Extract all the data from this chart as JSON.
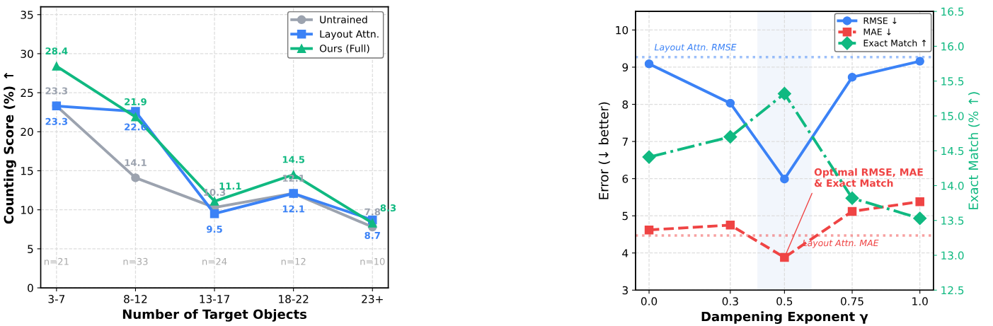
{
  "chart_data": [
    {
      "type": "line",
      "xlabel": "Number of Target Objects",
      "ylabel": "Counting Score (%) ↑",
      "categories": [
        "3-7",
        "8-12",
        "13-17",
        "18-22",
        "23+"
      ],
      "series": [
        {
          "name": "Untrained",
          "color": "#9ca3af",
          "values": [
            23.3,
            14.1,
            10.3,
            12.1,
            7.8
          ],
          "marker": "circle"
        },
        {
          "name": "Layout Attn.",
          "color": "#3b82f6",
          "values": [
            23.3,
            22.6,
            9.5,
            12.1,
            8.7
          ],
          "marker": "square"
        },
        {
          "name": "Ours (Full)",
          "color": "#10b981",
          "values": [
            28.4,
            21.9,
            11.1,
            14.5,
            8.3
          ],
          "marker": "triangle"
        }
      ],
      "data_labels": true,
      "ylim": [
        0,
        36
      ],
      "yticks": [
        0,
        5,
        10,
        15,
        20,
        25,
        30,
        35
      ],
      "grid": true,
      "legend": "top right",
      "line_style": "solid",
      "annotations": [
        "n=21",
        "n=33",
        "n=24",
        "n=12",
        "n=10"
      ]
    },
    {
      "type": "line",
      "xlabel": "Dampening Exponent γ",
      "ylabel": "Error (↓ better)",
      "y2label": "Exact Match (% ↑)",
      "x": [
        0,
        0.3,
        0.5,
        0.75,
        1.0
      ],
      "series": [
        {
          "name": "RMSE ↓",
          "color": "#3b82f6",
          "values": [
            9.09,
            8.03,
            5.99,
            8.73,
            9.16
          ],
          "marker": "circle",
          "line_style": "solid"
        },
        {
          "name": "MAE ↓",
          "color": "#ef4444",
          "values": [
            4.62,
            4.75,
            3.88,
            5.12,
            5.38
          ],
          "marker": "square",
          "line_style": "dashed"
        },
        {
          "name": "Exact Match ↑",
          "color": "#10b981",
          "values": [
            14.41,
            14.7,
            15.32,
            13.82,
            13.53
          ],
          "marker": "diamond",
          "line_style": "dashdot",
          "axis": "y2"
        }
      ],
      "xlim": [
        -0.05,
        1.05
      ],
      "xticks": [
        {
          "value": 0,
          "label": "0.0"
        },
        0.3,
        0.5,
        0.75,
        {
          "value": 1.0,
          "label": "1.0"
        }
      ],
      "ylim": [
        3,
        10.5
      ],
      "yticks": [
        3,
        4,
        5,
        6,
        7,
        8,
        9,
        10
      ],
      "y2lim": [
        12.5,
        16.5
      ],
      "y2ticks": [
        {
          "value": 12.5,
          "label": "12.5"
        },
        {
          "value": 13,
          "label": "13.0"
        },
        {
          "value": 13.5,
          "label": "13.5"
        },
        {
          "value": 14,
          "label": "14.0"
        },
        {
          "value": 14.5,
          "label": "14.5"
        },
        {
          "value": 15,
          "label": "15.0"
        },
        {
          "value": 15.5,
          "label": "15.5"
        },
        {
          "value": 16,
          "label": "16.0"
        },
        {
          "value": 16.5,
          "label": "16.5"
        }
      ],
      "grid": true,
      "legend": "top right",
      "ref_lines": [
        {
          "axis": "y",
          "value": 9.27,
          "label": "Layout Attn. RMSE",
          "color": "#3b82f6",
          "line_style": "dotted"
        },
        {
          "axis": "y",
          "value": 4.47,
          "label": "Layout Attn. MAE",
          "color": "#ef4444",
          "line_style": "dotted"
        }
      ],
      "bands": [
        {
          "axis": "x",
          "from": 0.4,
          "to": 0.6,
          "color": "#dbe6f7"
        }
      ],
      "annotations": [
        {
          "text": "Optimal RMSE, MAE\n& Exact Match",
          "x": 0.5,
          "y": 3.88
        }
      ]
    }
  ]
}
